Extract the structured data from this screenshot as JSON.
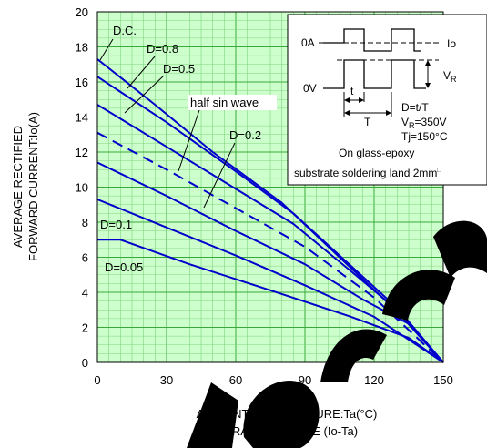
{
  "chart_data": {
    "type": "line",
    "title": "",
    "xlabel": "AMBIENT TEMPERATURE:Ta(°C)",
    "ylabel": "AVERAGE RECTIFIED FORWARD CURRENT:Io(A)",
    "ylabel_lines": [
      "AVERAGE RECTIFIED",
      "FORWARD CURRENT:Io(A)"
    ],
    "caption": "DERATING CURVE (Io-Ta)",
    "xlim": [
      0,
      150
    ],
    "ylim": [
      0,
      20
    ],
    "x_ticks": [
      "0",
      "30",
      "60",
      "90",
      "120",
      "150"
    ],
    "y_ticks": [
      "0",
      "2",
      "4",
      "6",
      "8",
      "10",
      "12",
      "14",
      "16",
      "18",
      "20"
    ],
    "grid": true,
    "series": [
      {
        "name": "D.C.",
        "style": "solid",
        "points": [
          [
            0,
            17.3
          ],
          [
            25,
            14.7
          ],
          [
            50,
            12.0
          ],
          [
            80,
            9.1
          ],
          [
            105,
            6.0
          ],
          [
            130,
            2.9
          ],
          [
            150,
            0
          ]
        ]
      },
      {
        "name": "D=0.8",
        "style": "solid",
        "points": [
          [
            0,
            16.3
          ],
          [
            30,
            13.7
          ],
          [
            60,
            10.9
          ],
          [
            85,
            8.5
          ],
          [
            110,
            5.5
          ],
          [
            130,
            3.1
          ],
          [
            150,
            0
          ]
        ]
      },
      {
        "name": "D=0.5",
        "style": "solid",
        "points": [
          [
            0,
            14.7
          ],
          [
            30,
            12.3
          ],
          [
            60,
            9.9
          ],
          [
            85,
            7.9
          ],
          [
            110,
            5.2
          ],
          [
            130,
            3.0
          ],
          [
            150,
            0
          ]
        ]
      },
      {
        "name": "half sin wave",
        "style": "dashed",
        "points": [
          [
            0,
            13.1
          ],
          [
            30,
            11.0
          ],
          [
            60,
            8.8
          ],
          [
            90,
            6.6
          ],
          [
            120,
            3.7
          ],
          [
            150,
            0
          ]
        ]
      },
      {
        "name": "D=0.2",
        "style": "solid",
        "points": [
          [
            0,
            11.4
          ],
          [
            30,
            9.5
          ],
          [
            60,
            7.5
          ],
          [
            90,
            5.6
          ],
          [
            115,
            3.6
          ],
          [
            135,
            2.2
          ],
          [
            150,
            0
          ]
        ]
      },
      {
        "name": "D=0.1",
        "style": "solid",
        "points": [
          [
            0,
            9.3
          ],
          [
            30,
            7.7
          ],
          [
            60,
            6.1
          ],
          [
            90,
            4.4
          ],
          [
            120,
            2.6
          ],
          [
            150,
            0
          ]
        ]
      },
      {
        "name": "D=0.05",
        "style": "solid",
        "points": [
          [
            0,
            7.0
          ],
          [
            10,
            7.0
          ],
          [
            40,
            5.6
          ],
          [
            80,
            3.9
          ],
          [
            110,
            2.6
          ],
          [
            135,
            1.4
          ],
          [
            150,
            0
          ]
        ]
      }
    ],
    "annotations": {
      "dc": "D.C.",
      "d08": "D=0.8",
      "d05": "D=0.5",
      "half_sin": "half sin wave",
      "d02": "D=0.2",
      "d01": "D=0.1",
      "d005": "D=0.05"
    },
    "inset": {
      "io_label": "Io",
      "zero_a": "0A",
      "zero_v": "0V",
      "vr_main": "V",
      "vr_sub": "R",
      "t_small": "t",
      "t_big": "T",
      "d_formula": "D=t/T",
      "vr_value_main": "V",
      "vr_value_sub": "R",
      "vr_value_rest": "=350V",
      "tj": "Tj=150°C",
      "substrate_1": "On glass-epoxy",
      "substrate_2": "substrate soldering land 2mm",
      "substrate_sup": "□"
    },
    "colors": {
      "background": "#ccffcc",
      "grid": "#6ccb6c",
      "line": "#0000cc",
      "watermark": "#000000"
    }
  }
}
